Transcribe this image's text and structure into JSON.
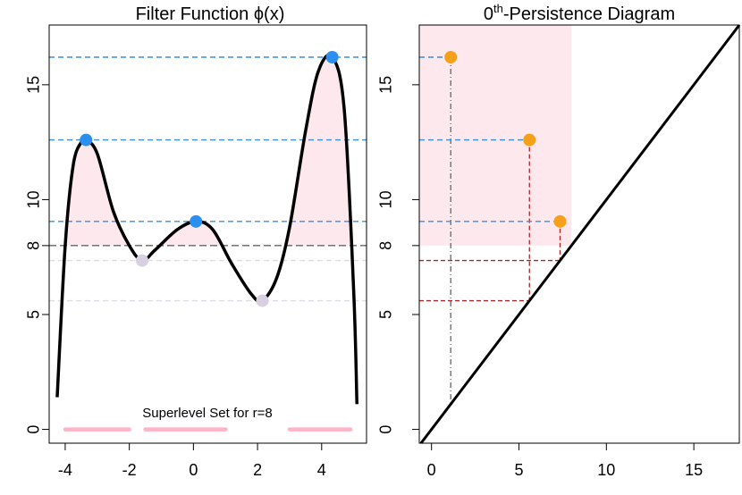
{
  "chart_data": [
    {
      "type": "line",
      "title": "Filter Function ϕ(x)",
      "xlabel": "",
      "ylabel": "",
      "xlim": [
        -4.5,
        5.4
      ],
      "ylim": [
        -0.6,
        17.6
      ],
      "x_ticks": [
        -4,
        -2,
        0,
        2,
        4
      ],
      "y_ticks": [
        0,
        5,
        8,
        10,
        15
      ],
      "curve": {
        "x": [
          -4.25,
          -4.0,
          -3.75,
          -3.5,
          -3.35,
          -3.0,
          -2.5,
          -2.0,
          -1.6,
          -1.2,
          -0.5,
          0.08,
          0.6,
          1.2,
          1.8,
          2.15,
          2.6,
          3.0,
          3.5,
          3.9,
          4.33,
          4.7,
          5.0,
          5.1
        ],
        "y": [
          1.4,
          8.0,
          11.5,
          12.5,
          12.6,
          12.0,
          9.5,
          8.0,
          7.35,
          7.8,
          8.7,
          9.05,
          8.7,
          7.2,
          5.9,
          5.6,
          6.6,
          8.8,
          13.0,
          15.6,
          16.2,
          14.0,
          6.0,
          1.1
        ]
      },
      "maxima": [
        {
          "x": -3.35,
          "y": 12.6
        },
        {
          "x": 0.08,
          "y": 9.05
        },
        {
          "x": 4.33,
          "y": 16.2
        }
      ],
      "minima": [
        {
          "x": -1.6,
          "y": 7.35
        },
        {
          "x": 2.15,
          "y": 5.6
        }
      ],
      "threshold_r": 8,
      "superlevel_intervals": [
        [
          -4.0,
          -2.0
        ],
        [
          -1.5,
          1.0
        ],
        [
          3.0,
          4.9
        ]
      ],
      "annotation": "Superlevel Set for r=8"
    },
    {
      "type": "scatter",
      "title_prefix": "0",
      "title_sup": "th",
      "title_suffix": "-Persistence Diagram",
      "xlabel": "",
      "ylabel": "",
      "xlim": [
        -0.7,
        17.6
      ],
      "ylim": [
        -0.6,
        17.6
      ],
      "x_ticks": [
        0,
        5,
        10,
        15
      ],
      "y_ticks": [
        0,
        5,
        8,
        10,
        15
      ],
      "diagonal": true,
      "shaded_region": {
        "x": [
          -0.7,
          8
        ],
        "y": [
          8,
          17.6
        ]
      },
      "points": [
        {
          "death": 1.1,
          "birth": 16.2
        },
        {
          "death": 5.6,
          "birth": 12.6
        },
        {
          "death": 7.35,
          "birth": 9.05
        }
      ]
    }
  ],
  "colors": {
    "max_point": "#2b8ff0",
    "min_point": "#d8cfe0",
    "diagram_point": "#f5a01a",
    "shade": "#fde8ee",
    "interval": "#ffb3c6",
    "dashed_blue": "#3a8ee6",
    "dashed_red": "#b22222",
    "dashed_gray": "#666666",
    "dashed_light": "#dddde6",
    "curve": "#000000"
  }
}
